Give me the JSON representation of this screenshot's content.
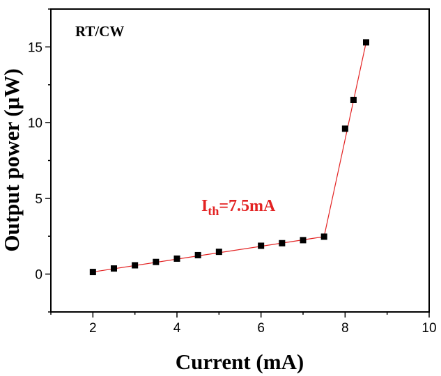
{
  "chart_data": {
    "type": "scatter",
    "xlabel": "Current (mA)",
    "ylabel": "Output power (μW)",
    "xlim": [
      1,
      10
    ],
    "ylim": [
      -2.5,
      17.5
    ],
    "xticks": [
      2,
      4,
      6,
      8,
      10
    ],
    "yticks": [
      0,
      5,
      10,
      15
    ],
    "grid": false,
    "legend": "none",
    "panel_label": "RT/CW",
    "annotation": {
      "main": "I",
      "sub": "th",
      "rest": "=7.5mA"
    },
    "marker_color": "#000000",
    "fit_line_color": "#e32222",
    "points": [
      {
        "x": 2.0,
        "y": 0.14
      },
      {
        "x": 2.5,
        "y": 0.37
      },
      {
        "x": 3.0,
        "y": 0.58
      },
      {
        "x": 3.5,
        "y": 0.8
      },
      {
        "x": 4.0,
        "y": 1.02
      },
      {
        "x": 4.5,
        "y": 1.25
      },
      {
        "x": 5.0,
        "y": 1.47
      },
      {
        "x": 6.0,
        "y": 1.87
      },
      {
        "x": 6.5,
        "y": 2.04
      },
      {
        "x": 7.0,
        "y": 2.24
      },
      {
        "x": 7.5,
        "y": 2.47
      },
      {
        "x": 8.0,
        "y": 9.6
      },
      {
        "x": 8.2,
        "y": 11.5
      },
      {
        "x": 8.5,
        "y": 15.3
      }
    ],
    "fit_lines": [
      {
        "x": [
          2.0,
          7.5
        ],
        "y": [
          0.14,
          2.47
        ]
      },
      {
        "x": [
          7.5,
          8.5
        ],
        "y": [
          2.47,
          15.3
        ]
      }
    ]
  }
}
